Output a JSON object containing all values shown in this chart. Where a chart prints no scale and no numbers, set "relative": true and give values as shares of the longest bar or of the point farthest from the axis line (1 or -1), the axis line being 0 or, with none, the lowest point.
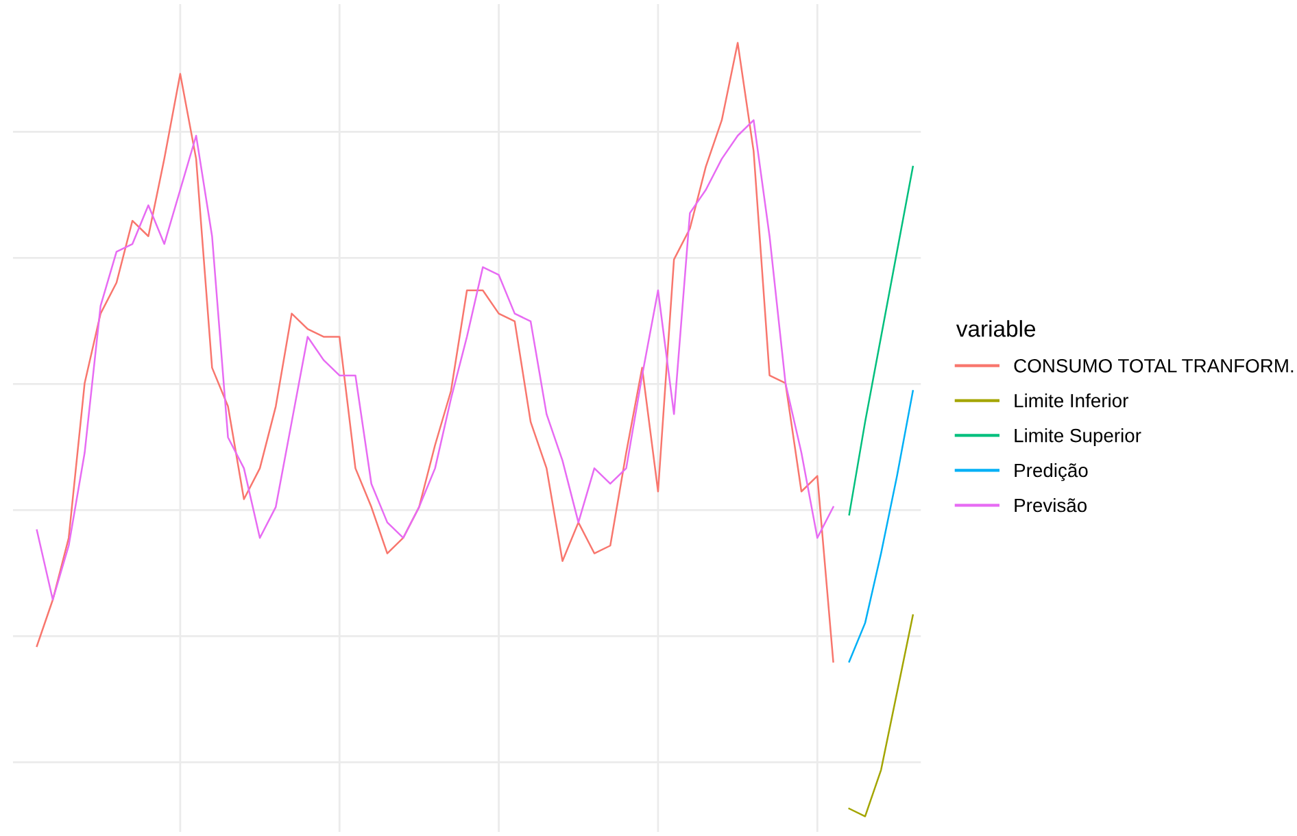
{
  "chart_data": {
    "type": "line",
    "relative": true,
    "legend_title": "variable",
    "legend": "right",
    "grid": true,
    "line_style": "solid",
    "marker": "none",
    "categories": [
      null,
      null,
      null,
      null,
      null,
      null,
      null,
      null,
      null,
      null,
      null,
      null,
      null,
      null,
      null,
      null,
      null,
      null,
      null,
      null,
      null,
      null,
      null,
      null,
      null,
      null,
      null,
      null,
      null,
      null,
      null,
      null,
      null,
      null,
      null,
      null,
      null,
      null,
      null,
      null,
      null,
      null,
      null,
      null,
      null,
      null,
      null,
      null,
      null,
      null,
      null,
      null,
      null,
      null,
      null,
      null
    ],
    "series": [
      {
        "name": "CONSUMO TOTAL TRANFORM.",
        "color": "#f8766d",
        "values": [
          0.22,
          0.28,
          0.36,
          0.56,
          0.65,
          0.69,
          0.77,
          0.75,
          0.85,
          0.96,
          0.85,
          0.58,
          0.53,
          0.41,
          0.45,
          0.53,
          0.65,
          0.63,
          0.62,
          0.62,
          0.45,
          0.4,
          0.34,
          0.36,
          0.4,
          0.48,
          0.55,
          0.68,
          0.68,
          0.65,
          0.64,
          0.51,
          0.45,
          0.33,
          0.38,
          0.34,
          0.35,
          0.47,
          0.58,
          0.42,
          0.72,
          0.76,
          0.84,
          0.9,
          1.0,
          0.86,
          0.57,
          0.56,
          0.42,
          0.44,
          0.2,
          null,
          null,
          null,
          null,
          null
        ]
      },
      {
        "name": "Limite Inferior",
        "color": "#a3a500",
        "values": [
          null,
          null,
          null,
          null,
          null,
          null,
          null,
          null,
          null,
          null,
          null,
          null,
          null,
          null,
          null,
          null,
          null,
          null,
          null,
          null,
          null,
          null,
          null,
          null,
          null,
          null,
          null,
          null,
          null,
          null,
          null,
          null,
          null,
          null,
          null,
          null,
          null,
          null,
          null,
          null,
          null,
          null,
          null,
          null,
          null,
          null,
          null,
          null,
          null,
          null,
          null,
          0.01,
          0.0,
          0.06,
          0.16,
          0.26
        ]
      },
      {
        "name": "Limite Superior",
        "color": "#00bf7d",
        "values": [
          null,
          null,
          null,
          null,
          null,
          null,
          null,
          null,
          null,
          null,
          null,
          null,
          null,
          null,
          null,
          null,
          null,
          null,
          null,
          null,
          null,
          null,
          null,
          null,
          null,
          null,
          null,
          null,
          null,
          null,
          null,
          null,
          null,
          null,
          null,
          null,
          null,
          null,
          null,
          null,
          null,
          null,
          null,
          null,
          null,
          null,
          null,
          null,
          null,
          null,
          null,
          0.39,
          0.51,
          0.62,
          0.73,
          0.84
        ]
      },
      {
        "name": "Predição",
        "color": "#00b0f6",
        "values": [
          null,
          null,
          null,
          null,
          null,
          null,
          null,
          null,
          null,
          null,
          null,
          null,
          null,
          null,
          null,
          null,
          null,
          null,
          null,
          null,
          null,
          null,
          null,
          null,
          null,
          null,
          null,
          null,
          null,
          null,
          null,
          null,
          null,
          null,
          null,
          null,
          null,
          null,
          null,
          null,
          null,
          null,
          null,
          null,
          null,
          null,
          null,
          null,
          null,
          null,
          null,
          0.2,
          0.25,
          0.34,
          0.44,
          0.55
        ]
      },
      {
        "name": "Previsão",
        "color": "#e76bf3",
        "values": [
          0.37,
          0.28,
          0.35,
          0.47,
          0.66,
          0.73,
          0.74,
          0.79,
          0.74,
          0.81,
          0.88,
          0.75,
          0.49,
          0.45,
          0.36,
          0.4,
          0.51,
          0.62,
          0.59,
          0.57,
          0.57,
          0.43,
          0.38,
          0.36,
          0.4,
          0.45,
          0.54,
          0.62,
          0.71,
          0.7,
          0.65,
          0.64,
          0.52,
          0.46,
          0.38,
          0.45,
          0.43,
          0.45,
          0.57,
          0.68,
          0.52,
          0.78,
          0.81,
          0.85,
          0.88,
          0.9,
          0.75,
          0.56,
          0.47,
          0.36,
          0.4,
          null,
          null,
          null,
          null,
          null
        ]
      }
    ]
  }
}
